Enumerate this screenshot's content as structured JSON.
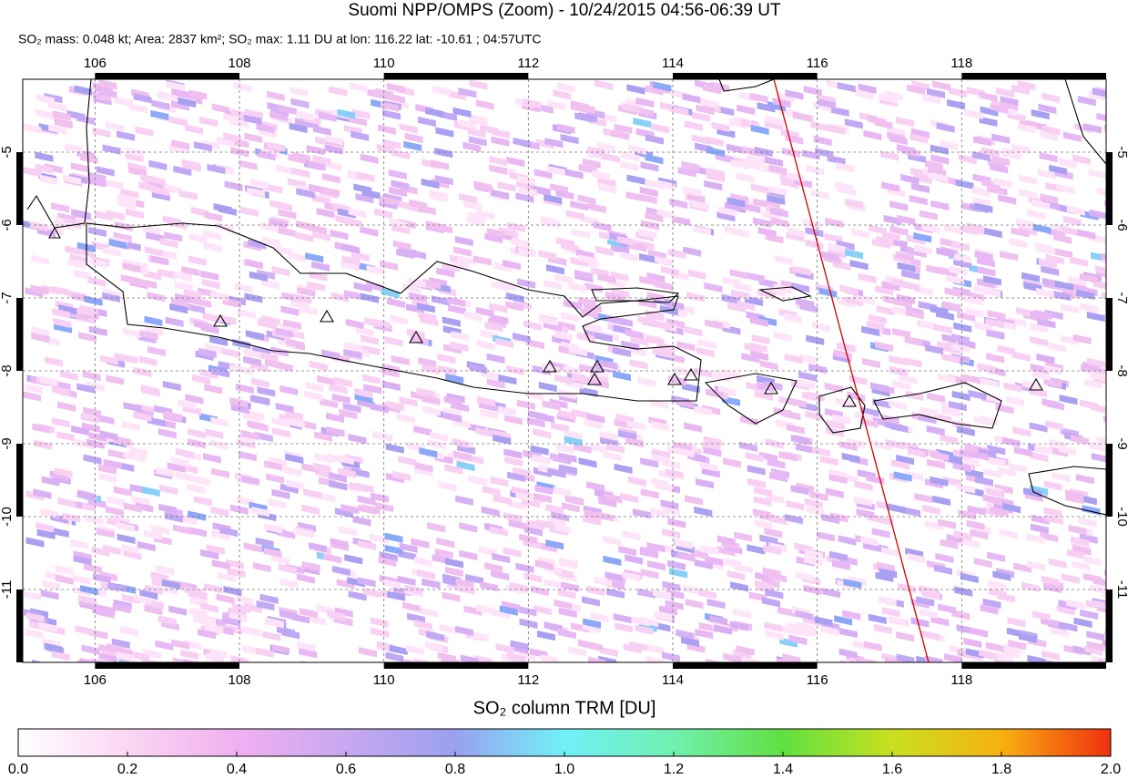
{
  "title": "Suomi NPP/OMPS (Zoom) - 10/24/2015 04:56-06:39 UT",
  "subtitle": "SO₂ mass: 0.048 kt; Area: 2837 km²; SO₂ max: 1.11 DU at lon: 116.22 lat: -10.61 ; 04:57UTC",
  "map": {
    "xlim": [
      105,
      120
    ],
    "ylim": [
      -12,
      -4
    ],
    "xticks": [
      106,
      108,
      110,
      112,
      114,
      116,
      118
    ],
    "yticks": [
      -5,
      -6,
      -7,
      -8,
      -9,
      -10,
      -11
    ]
  },
  "colorbar": {
    "label": "SO₂ column TRM [DU]",
    "lim": [
      0,
      2
    ],
    "ticks": [
      {
        "value": 0,
        "label": "0.0"
      },
      0.2,
      0.4,
      0.6,
      0.8,
      {
        "value": 1,
        "label": "1.0"
      },
      1.2,
      1.4,
      1.6,
      1.8,
      {
        "value": 2,
        "label": "2.0"
      }
    ]
  }
}
